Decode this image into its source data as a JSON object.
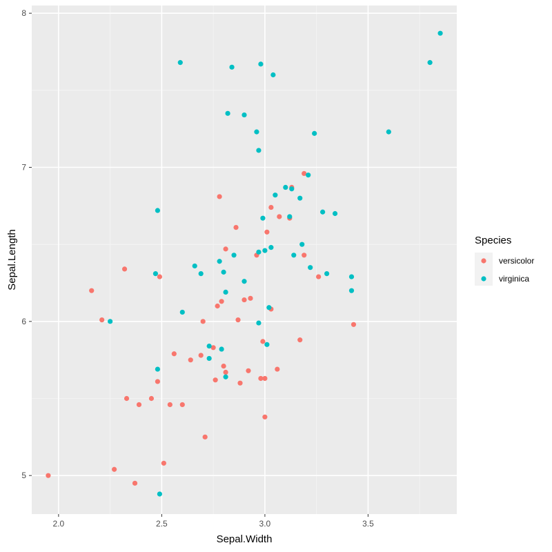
{
  "chart_data": {
    "type": "scatter",
    "xlabel": "Sepal.Width",
    "ylabel": "Sepal.Length",
    "xlim": [
      1.87,
      3.93
    ],
    "ylim": [
      4.75,
      8.05
    ],
    "x_ticks": [
      2.0,
      2.5,
      3.0,
      3.5
    ],
    "x_tick_labels": [
      "2.0",
      "2.5",
      "3.0",
      "3.5"
    ],
    "y_ticks": [
      5,
      6,
      7,
      8
    ],
    "y_tick_labels": [
      "5",
      "6",
      "7",
      "8"
    ],
    "grid": true,
    "legend": {
      "title": "Species",
      "position": "right"
    },
    "series": [
      {
        "name": "versicolor",
        "color": "#F8766D",
        "points": [
          [
            1.95,
            5.0
          ],
          [
            2.16,
            6.2
          ],
          [
            2.21,
            6.01
          ],
          [
            2.27,
            5.04
          ],
          [
            2.32,
            6.34
          ],
          [
            2.33,
            5.5
          ],
          [
            2.37,
            4.95
          ],
          [
            2.39,
            5.46
          ],
          [
            2.45,
            5.5
          ],
          [
            2.48,
            5.61
          ],
          [
            2.49,
            6.29
          ],
          [
            2.51,
            5.08
          ],
          [
            2.54,
            5.46
          ],
          [
            2.56,
            5.79
          ],
          [
            2.6,
            5.46
          ],
          [
            2.64,
            5.75
          ],
          [
            2.69,
            5.78
          ],
          [
            2.7,
            6.0
          ],
          [
            2.71,
            5.25
          ],
          [
            2.75,
            5.83
          ],
          [
            2.76,
            5.62
          ],
          [
            2.77,
            6.1
          ],
          [
            2.78,
            6.81
          ],
          [
            2.79,
            6.13
          ],
          [
            2.8,
            5.71
          ],
          [
            2.81,
            5.67
          ],
          [
            2.81,
            6.47
          ],
          [
            2.86,
            6.61
          ],
          [
            2.87,
            6.01
          ],
          [
            2.88,
            5.6
          ],
          [
            2.9,
            6.14
          ],
          [
            2.92,
            5.68
          ],
          [
            2.93,
            6.15
          ],
          [
            2.96,
            6.43
          ],
          [
            2.98,
            5.63
          ],
          [
            2.99,
            5.87
          ],
          [
            3.0,
            5.63
          ],
          [
            3.0,
            5.38
          ],
          [
            3.01,
            6.58
          ],
          [
            3.03,
            6.74
          ],
          [
            3.03,
            6.08
          ],
          [
            3.06,
            5.69
          ],
          [
            3.07,
            6.68
          ],
          [
            3.12,
            6.67
          ],
          [
            3.13,
            6.87
          ],
          [
            3.17,
            5.88
          ],
          [
            3.19,
            6.43
          ],
          [
            3.19,
            6.96
          ],
          [
            3.26,
            6.29
          ],
          [
            3.43,
            5.98
          ]
        ]
      },
      {
        "name": "virginica",
        "color": "#00BFC4",
        "points": [
          [
            2.25,
            6.0
          ],
          [
            2.47,
            6.31
          ],
          [
            2.48,
            6.72
          ],
          [
            2.48,
            5.69
          ],
          [
            2.49,
            4.88
          ],
          [
            2.59,
            7.68
          ],
          [
            2.6,
            6.06
          ],
          [
            2.66,
            6.36
          ],
          [
            2.69,
            6.31
          ],
          [
            2.73,
            5.84
          ],
          [
            2.73,
            5.76
          ],
          [
            2.78,
            6.39
          ],
          [
            2.79,
            5.82
          ],
          [
            2.8,
            6.32
          ],
          [
            2.81,
            6.19
          ],
          [
            2.81,
            5.64
          ],
          [
            2.82,
            7.35
          ],
          [
            2.84,
            7.65
          ],
          [
            2.85,
            6.43
          ],
          [
            2.9,
            6.26
          ],
          [
            2.9,
            7.34
          ],
          [
            2.96,
            7.23
          ],
          [
            2.97,
            5.99
          ],
          [
            2.97,
            7.11
          ],
          [
            2.97,
            6.45
          ],
          [
            2.98,
            7.67
          ],
          [
            2.99,
            6.67
          ],
          [
            3.0,
            6.46
          ],
          [
            3.01,
            5.85
          ],
          [
            3.02,
            6.09
          ],
          [
            3.03,
            6.48
          ],
          [
            3.04,
            7.6
          ],
          [
            3.05,
            6.82
          ],
          [
            3.1,
            6.87
          ],
          [
            3.12,
            6.68
          ],
          [
            3.13,
            6.86
          ],
          [
            3.14,
            6.43
          ],
          [
            3.17,
            6.8
          ],
          [
            3.18,
            6.5
          ],
          [
            3.21,
            6.95
          ],
          [
            3.22,
            6.35
          ],
          [
            3.24,
            7.22
          ],
          [
            3.28,
            6.71
          ],
          [
            3.3,
            6.31
          ],
          [
            3.34,
            6.7
          ],
          [
            3.42,
            6.29
          ],
          [
            3.42,
            6.2
          ],
          [
            3.6,
            7.23
          ],
          [
            3.8,
            7.68
          ],
          [
            3.85,
            7.87
          ]
        ]
      }
    ]
  }
}
